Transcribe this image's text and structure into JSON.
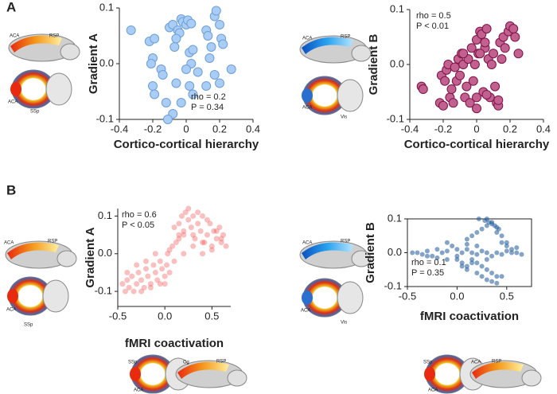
{
  "panel_labels": [
    "A",
    "B"
  ],
  "brain_labels": [
    "ACA",
    "RSP",
    "ACA",
    "SSp",
    "ACA",
    "RSP",
    "ACA",
    "Vis",
    "ACA",
    "RSP",
    "ACA",
    "SSp",
    "ACA",
    "RSP",
    "ACA",
    "Vis",
    "SSp",
    "ACA",
    "Cg",
    "RSP",
    "SSp",
    "ACA",
    "ACA",
    "RSP"
  ],
  "chart_data": [
    {
      "type": "scatter",
      "x_label": "Cortico-cortical hierarchy",
      "y_label": "Gradient A",
      "annotations": [
        "rho = 0.2",
        "P = 0.34"
      ],
      "color": "#a9cdf5",
      "edge_color": "#6e9fd8",
      "xlim": [
        -0.4,
        0.4
      ],
      "ylim": [
        -0.1,
        0.1
      ],
      "xticks": [
        -0.4,
        -0.2,
        0,
        0.2,
        0.4
      ],
      "yticks": [
        -0.1,
        {
          "value": 0,
          "label": "0.0"
        },
        0.1
      ],
      "x": [
        -0.33,
        -0.22,
        -0.19,
        -0.2,
        -0.21,
        -0.15,
        -0.2,
        -0.14,
        -0.19,
        -0.1,
        -0.08,
        -0.07,
        -0.05,
        -0.03,
        -0.02,
        0.0,
        0.01,
        0.03,
        -0.04,
        -0.06,
        -0.03,
        -0.06,
        -0.12,
        -0.08,
        -0.11,
        0.02,
        0.04,
        0.03,
        0.0,
        0.02,
        0.04,
        0.07,
        0.12,
        0.13,
        0.15,
        0.17,
        0.18,
        0.2,
        0.21,
        0.14,
        0.17,
        0.22,
        0.27,
        0.2,
        0.12
      ],
      "y": [
        0.06,
        0.04,
        0.045,
        0.01,
        0.0,
        -0.01,
        -0.04,
        -0.02,
        -0.055,
        0.065,
        0.07,
        0.03,
        0.06,
        0.08,
        0.075,
        0.07,
        0.078,
        0.072,
        0.055,
        0.045,
        -0.07,
        -0.035,
        -0.07,
        -0.09,
        -0.1,
        0.02,
        0.025,
        0.0,
        -0.01,
        -0.04,
        -0.055,
        -0.015,
        0.06,
        0.05,
        0.03,
        0.085,
        0.095,
        0.07,
        0.045,
        0.01,
        -0.02,
        0.035,
        -0.01,
        -0.035,
        -0.04
      ]
    },
    {
      "type": "scatter",
      "x_label": "Cortico-cortical hierarchy",
      "y_label": "Gradient B",
      "annotations": [
        "rho = 0.5",
        "P < 0.01"
      ],
      "color": "#c2608f",
      "edge_color": "#7d1446",
      "xlim": [
        -0.4,
        0.4
      ],
      "ylim": [
        -0.1,
        0.1
      ],
      "xticks": [
        -0.4,
        -0.2,
        0,
        0.2,
        0.4
      ],
      "yticks": [
        -0.1,
        {
          "value": 0,
          "label": "0.0"
        },
        0.1
      ],
      "x": [
        -0.33,
        -0.32,
        -0.22,
        -0.2,
        -0.21,
        -0.19,
        -0.18,
        -0.17,
        -0.16,
        -0.14,
        -0.13,
        -0.12,
        -0.11,
        -0.1,
        -0.09,
        -0.08,
        -0.07,
        -0.06,
        -0.05,
        -0.04,
        -0.03,
        -0.02,
        -0.01,
        0.0,
        0.01,
        0.02,
        0.03,
        0.04,
        0.05,
        0.06,
        0.07,
        0.08,
        0.09,
        0.1,
        0.11,
        0.12,
        0.13,
        0.14,
        0.15,
        0.16,
        0.17,
        0.19,
        0.2,
        0.22,
        0.23,
        0.25,
        -0.15,
        0.0,
        0.05,
        0.13,
        0.0,
        -0.08,
        0.02,
        0.06
      ],
      "y": [
        -0.04,
        -0.045,
        -0.07,
        -0.075,
        -0.02,
        -0.03,
        -0.01,
        0.0,
        -0.06,
        -0.07,
        -0.005,
        -0.03,
        0.01,
        -0.02,
        0.02,
        0.0,
        -0.06,
        -0.04,
        0.01,
        -0.07,
        0.03,
        -0.03,
        0.0,
        0.045,
        0.02,
        0.06,
        0.055,
        -0.05,
        0.03,
        0.065,
        0.01,
        -0.06,
        0.0,
        0.02,
        -0.04,
        -0.07,
        -0.075,
        0.04,
        0.01,
        0.05,
        0.03,
        0.06,
        0.07,
        0.065,
        0.05,
        0.02,
        -0.045,
        -0.08,
        0.04,
        -0.065,
        -0.06,
        0.02,
        0.02,
        -0.055
      ]
    },
    {
      "type": "scatter",
      "x_label": "fMRI coactivation",
      "y_label": "Gradient A",
      "annotations": [
        "rho = 0.6",
        "P < 0.05"
      ],
      "color": "#f04848",
      "alpha": 0.35,
      "xlim": [
        -0.5,
        0.7
      ],
      "ylim": [
        -0.14,
        0.12
      ],
      "xticks": [
        -0.5,
        {
          "value": 0,
          "label": "0.0"
        },
        0.5
      ],
      "yticks": [
        -0.1,
        {
          "value": 0,
          "label": "0.0"
        },
        0.1
      ],
      "x": [
        -0.45,
        -0.42,
        -0.4,
        -0.38,
        -0.35,
        -0.33,
        -0.3,
        -0.28,
        -0.25,
        -0.22,
        -0.2,
        -0.18,
        -0.15,
        -0.12,
        -0.1,
        -0.08,
        -0.05,
        -0.03,
        0.0,
        0.02,
        -0.4,
        -0.3,
        -0.2,
        -0.1,
        0.0,
        -0.25,
        -0.15,
        -0.05,
        0.05,
        0.03,
        0.08,
        0.1,
        0.12,
        0.15,
        0.05,
        0.1,
        0.15,
        0.18,
        0.2,
        0.22,
        0.25,
        0.28,
        0.3,
        0.32,
        0.35,
        0.38,
        0.4,
        0.42,
        0.45,
        0.48,
        0.5,
        0.52,
        0.55,
        0.58,
        0.6,
        0.62,
        0.65,
        0.2,
        0.3,
        0.4,
        0.5,
        0.25,
        0.35,
        0.45,
        0.55,
        0.15,
        0.2,
        0.3,
        0.4,
        0.6
      ],
      "y": [
        -0.08,
        -0.1,
        -0.07,
        -0.09,
        -0.06,
        -0.1,
        -0.08,
        -0.05,
        -0.07,
        -0.09,
        -0.04,
        -0.06,
        -0.08,
        -0.03,
        -0.05,
        -0.07,
        -0.02,
        -0.04,
        -0.06,
        -0.03,
        -0.05,
        -0.03,
        -0.02,
        0.0,
        -0.08,
        -0.1,
        -0.09,
        -0.08,
        -0.05,
        0.0,
        0.02,
        -0.02,
        0.03,
        0.05,
        0.01,
        0.07,
        0.08,
        0.1,
        0.05,
        0.11,
        0.09,
        0.07,
        0.1,
        0.04,
        0.08,
        0.06,
        0.1,
        0.03,
        0.05,
        0.08,
        0.02,
        0.06,
        0.04,
        0.07,
        0.03,
        0.05,
        0.02,
        0.0,
        0.02,
        0.0,
        0.01,
        0.12,
        0.11,
        0.09,
        0.06,
        0.04,
        0.06,
        0.05,
        0.03,
        0.04
      ]
    },
    {
      "type": "scatter",
      "x_label": "fMRI coactivation",
      "y_label": "Gradient B",
      "annotations": [
        "rho = 0.1",
        "P = 0.35"
      ],
      "color": "#1f5a99",
      "alpha": 0.55,
      "box": true,
      "xlim": [
        -0.5,
        0.75
      ],
      "ylim": [
        -0.1,
        0.1
      ],
      "xticks": [
        -0.5,
        {
          "value": 0,
          "label": "0.0"
        },
        0.5
      ],
      "yticks": [
        -0.1,
        {
          "value": 0,
          "label": "0.0"
        },
        0.1
      ],
      "x": [
        -0.45,
        -0.4,
        -0.35,
        -0.3,
        -0.25,
        -0.2,
        -0.15,
        -0.1,
        -0.05,
        0.0,
        -0.3,
        -0.2,
        -0.1,
        0.0,
        0.05,
        0.1,
        0.15,
        0.2,
        0.25,
        0.3,
        0.35,
        0.4,
        0.45,
        0.5,
        0.55,
        0.6,
        0.65,
        0.1,
        0.15,
        0.2,
        0.25,
        0.3,
        0.35,
        0.4,
        0.22,
        0.28,
        0.32,
        0.38,
        0.42,
        0.3,
        0.35,
        0.4,
        0.45,
        0.5,
        0.2,
        0.25,
        0.3,
        0.35,
        0.4,
        0.05,
        0.1,
        0.15,
        0.2,
        0.25,
        0.3,
        0.35,
        0.4,
        0.45,
        0.0,
        0.05,
        0.1,
        0.15,
        -0.1,
        0.5,
        0.45,
        0.55,
        0.6,
        0.3,
        0.2,
        0.1
      ],
      "y": [
        0.0,
        0.0,
        -0.005,
        0.005,
        -0.01,
        0.01,
        0.0,
        0.005,
        0.02,
        0.01,
        -0.01,
        -0.015,
        -0.02,
        -0.01,
        0.0,
        0.01,
        0.0,
        -0.005,
        0.005,
        0.0,
        -0.01,
        0.0,
        -0.005,
        0.005,
        0.0,
        0.0,
        -0.005,
        0.04,
        0.05,
        0.06,
        0.07,
        0.08,
        0.09,
        0.06,
        0.1,
        0.095,
        0.09,
        0.08,
        0.07,
        0.1,
        0.085,
        0.075,
        0.05,
        0.03,
        -0.03,
        -0.04,
        -0.05,
        -0.06,
        -0.07,
        -0.04,
        -0.05,
        -0.03,
        -0.06,
        -0.07,
        -0.08,
        -0.085,
        -0.09,
        -0.07,
        -0.02,
        -0.03,
        -0.04,
        -0.02,
        0.03,
        0.02,
        0.03,
        0.01,
        0.015,
        -0.02,
        0.02,
        0.025
      ]
    }
  ]
}
